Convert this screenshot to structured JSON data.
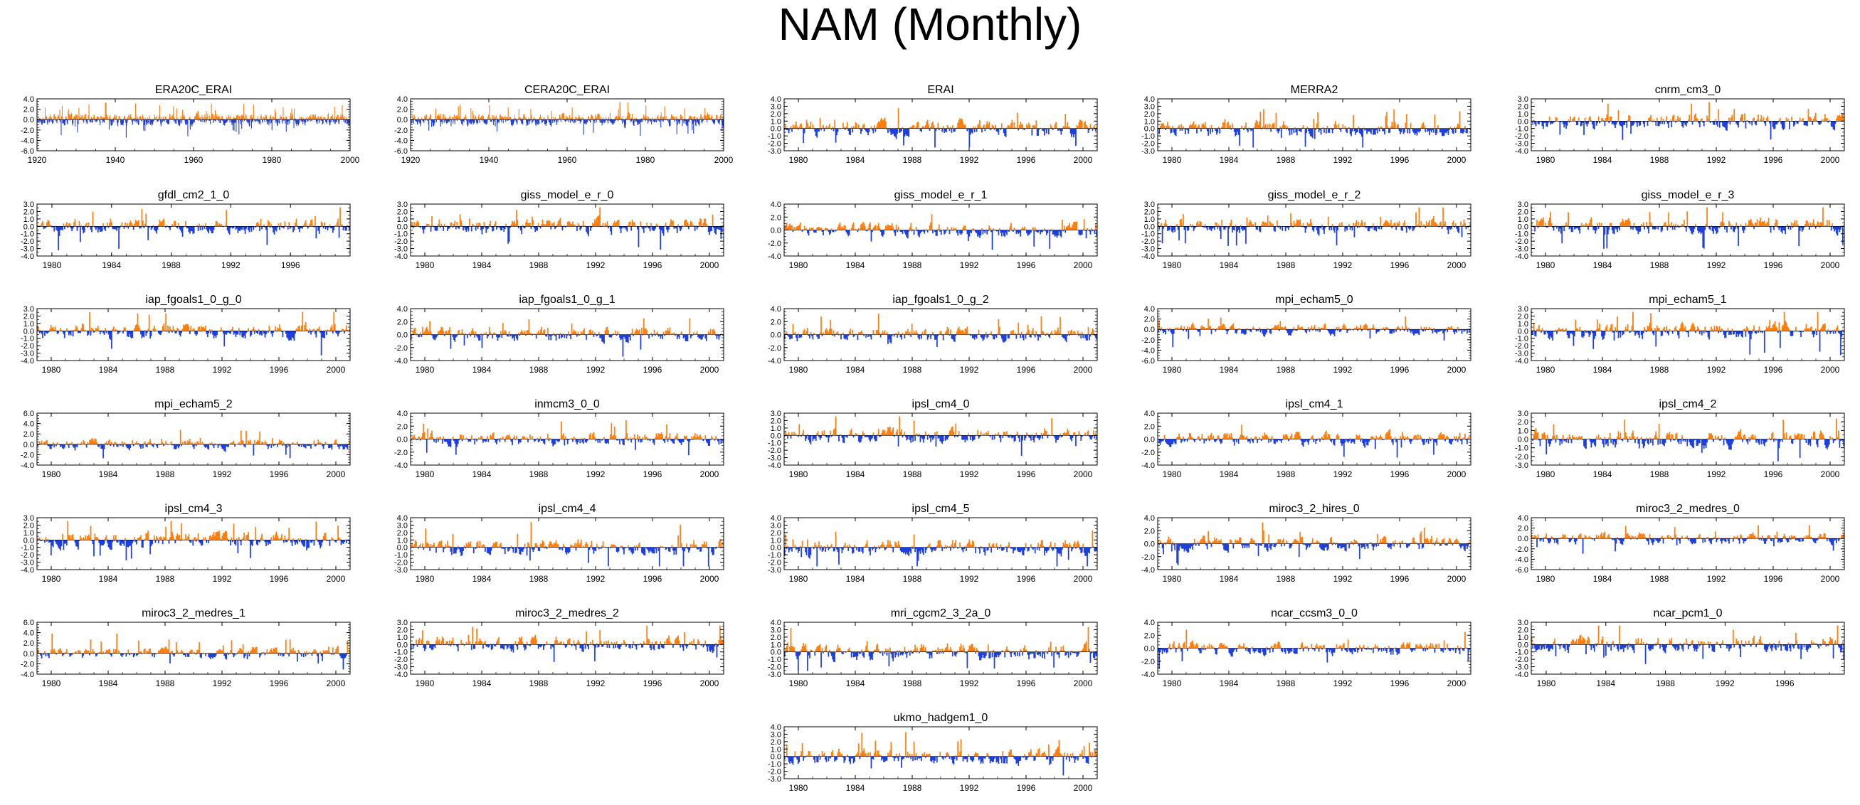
{
  "title": "NAM (Monthly)",
  "colors": {
    "positive": "#ff7f0e",
    "negative": "#1f3fe0",
    "axis": "#000000"
  },
  "chart_data": [
    {
      "type": "area",
      "title": "ERA20C_ERAI",
      "xlim": [
        1920,
        2000
      ],
      "ylim": [
        -6.0,
        4.0
      ],
      "xticks": [
        "1920",
        "1940",
        "1960",
        "1980",
        "2000"
      ],
      "yticks": [
        "4.0",
        "2.0",
        "0.0",
        "-2.0",
        "-4.0",
        "-6.0"
      ],
      "style": "spiky"
    },
    {
      "type": "area",
      "title": "CERA20C_ERAI",
      "xlim": [
        1920,
        2000
      ],
      "ylim": [
        -6.0,
        4.0
      ],
      "xticks": [
        "1920",
        "1940",
        "1960",
        "1980",
        "2000"
      ],
      "yticks": [
        "4.0",
        "2.0",
        "0.0",
        "-2.0",
        "-4.0",
        "-6.0"
      ],
      "style": "spiky"
    },
    {
      "type": "area",
      "title": "ERAI",
      "xlim": [
        1979,
        2001
      ],
      "ylim": [
        -3.0,
        4.0
      ],
      "xticks": [
        "1980",
        "1984",
        "1988",
        "1992",
        "1996",
        "2000"
      ],
      "yticks": [
        "4.0",
        "3.0",
        "2.0",
        "1.0",
        "0.0",
        "-1.0",
        "-2.0",
        "-3.0"
      ]
    },
    {
      "type": "area",
      "title": "MERRA2",
      "xlim": [
        1979,
        2001
      ],
      "ylim": [
        -3.0,
        4.0
      ],
      "xticks": [
        "1980",
        "1984",
        "1988",
        "1992",
        "1996",
        "2000"
      ],
      "yticks": [
        "4.0",
        "3.0",
        "2.0",
        "1.0",
        "0.0",
        "-1.0",
        "-2.0",
        "-3.0"
      ]
    },
    {
      "type": "area",
      "title": "cnrm_cm3_0",
      "xlim": [
        1979,
        2001
      ],
      "ylim": [
        -4.0,
        3.0
      ],
      "xticks": [
        "1980",
        "1984",
        "1988",
        "1992",
        "1996",
        "2000"
      ],
      "yticks": [
        "3.0",
        "2.0",
        "1.0",
        "0.0",
        "-1.0",
        "-2.0",
        "-3.0",
        "-4.0"
      ]
    },
    {
      "type": "area",
      "title": "gfdl_cm2_1_0",
      "xlim": [
        1979,
        2000
      ],
      "ylim": [
        -4.0,
        3.0
      ],
      "xticks": [
        "1980",
        "1984",
        "1988",
        "1992",
        "1996"
      ],
      "yticks": [
        "3.0",
        "2.0",
        "1.0",
        "0.0",
        "-1.0",
        "-2.0",
        "-3.0",
        "-4.0"
      ]
    },
    {
      "type": "area",
      "title": "giss_model_e_r_0",
      "xlim": [
        1979,
        2001
      ],
      "ylim": [
        -4.0,
        3.0
      ],
      "xticks": [
        "1980",
        "1984",
        "1988",
        "1992",
        "1996",
        "2000"
      ],
      "yticks": [
        "3.0",
        "2.0",
        "1.0",
        "0.0",
        "-1.0",
        "-2.0",
        "-3.0",
        "-4.0"
      ]
    },
    {
      "type": "area",
      "title": "giss_model_e_r_1",
      "xlim": [
        1979,
        2001
      ],
      "ylim": [
        -4.0,
        4.0
      ],
      "xticks": [
        "1980",
        "1984",
        "1988",
        "1992",
        "1996",
        "2000"
      ],
      "yticks": [
        "4.0",
        "2.0",
        "0.0",
        "-2.0",
        "-4.0"
      ]
    },
    {
      "type": "area",
      "title": "giss_model_e_r_2",
      "xlim": [
        1979,
        2001
      ],
      "ylim": [
        -4.0,
        3.0
      ],
      "xticks": [
        "1980",
        "1984",
        "1988",
        "1992",
        "1996",
        "2000"
      ],
      "yticks": [
        "3.0",
        "2.0",
        "1.0",
        "0.0",
        "-1.0",
        "-2.0",
        "-3.0",
        "-4.0"
      ]
    },
    {
      "type": "area",
      "title": "giss_model_e_r_3",
      "xlim": [
        1979,
        2001
      ],
      "ylim": [
        -4.0,
        3.0
      ],
      "xticks": [
        "1980",
        "1984",
        "1988",
        "1992",
        "1996",
        "2000"
      ],
      "yticks": [
        "3.0",
        "2.0",
        "1.0",
        "0.0",
        "-1.0",
        "-2.0",
        "-3.0",
        "-4.0"
      ]
    },
    {
      "type": "area",
      "title": "iap_fgoals1_0_g_0",
      "xlim": [
        1979,
        2001
      ],
      "ylim": [
        -4.0,
        3.0
      ],
      "xticks": [
        "1980",
        "1984",
        "1988",
        "1992",
        "1996",
        "2000"
      ],
      "yticks": [
        "3.0",
        "2.0",
        "1.0",
        "0.0",
        "-1.0",
        "-2.0",
        "-3.0",
        "-4.0"
      ]
    },
    {
      "type": "area",
      "title": "iap_fgoals1_0_g_1",
      "xlim": [
        1979,
        2001
      ],
      "ylim": [
        -4.0,
        4.0
      ],
      "xticks": [
        "1980",
        "1984",
        "1988",
        "1992",
        "1996",
        "2000"
      ],
      "yticks": [
        "4.0",
        "2.0",
        "0.0",
        "-2.0",
        "-4.0"
      ]
    },
    {
      "type": "area",
      "title": "iap_fgoals1_0_g_2",
      "xlim": [
        1979,
        2001
      ],
      "ylim": [
        -4.0,
        4.0
      ],
      "xticks": [
        "1980",
        "1984",
        "1988",
        "1992",
        "1996",
        "2000"
      ],
      "yticks": [
        "4.0",
        "2.0",
        "0.0",
        "-2.0",
        "-4.0"
      ]
    },
    {
      "type": "area",
      "title": "mpi_echam5_0",
      "xlim": [
        1979,
        2001
      ],
      "ylim": [
        -6.0,
        4.0
      ],
      "xticks": [
        "1980",
        "1984",
        "1988",
        "1992",
        "1996",
        "2000"
      ],
      "yticks": [
        "4.0",
        "2.0",
        "0.0",
        "-2.0",
        "-4.0",
        "-6.0"
      ]
    },
    {
      "type": "area",
      "title": "mpi_echam5_1",
      "xlim": [
        1979,
        2001
      ],
      "ylim": [
        -4.0,
        3.0
      ],
      "xticks": [
        "1980",
        "1984",
        "1988",
        "1992",
        "1996",
        "2000"
      ],
      "yticks": [
        "3.0",
        "2.0",
        "1.0",
        "0.0",
        "-1.0",
        "-2.0",
        "-3.0",
        "-4.0"
      ]
    },
    {
      "type": "area",
      "title": "mpi_echam5_2",
      "xlim": [
        1979,
        2001
      ],
      "ylim": [
        -4.0,
        6.0
      ],
      "xticks": [
        "1980",
        "1984",
        "1988",
        "1992",
        "1996",
        "2000"
      ],
      "yticks": [
        "6.0",
        "4.0",
        "2.0",
        "0.0",
        "-2.0",
        "-4.0"
      ]
    },
    {
      "type": "area",
      "title": "inmcm3_0_0",
      "xlim": [
        1979,
        2001
      ],
      "ylim": [
        -4.0,
        4.0
      ],
      "xticks": [
        "1980",
        "1984",
        "1988",
        "1992",
        "1996",
        "2000"
      ],
      "yticks": [
        "4.0",
        "2.0",
        "0.0",
        "-2.0",
        "-4.0"
      ]
    },
    {
      "type": "area",
      "title": "ipsl_cm4_0",
      "xlim": [
        1979,
        2001
      ],
      "ylim": [
        -4.0,
        3.0
      ],
      "xticks": [
        "1980",
        "1984",
        "1988",
        "1992",
        "1996",
        "2000"
      ],
      "yticks": [
        "3.0",
        "2.0",
        "1.0",
        "0.0",
        "-1.0",
        "-2.0",
        "-3.0",
        "-4.0"
      ]
    },
    {
      "type": "area",
      "title": "ipsl_cm4_1",
      "xlim": [
        1979,
        2001
      ],
      "ylim": [
        -4.0,
        4.0
      ],
      "xticks": [
        "1980",
        "1984",
        "1988",
        "1992",
        "1996",
        "2000"
      ],
      "yticks": [
        "4.0",
        "2.0",
        "0.0",
        "-2.0",
        "-4.0"
      ]
    },
    {
      "type": "area",
      "title": "ipsl_cm4_2",
      "xlim": [
        1979,
        2001
      ],
      "ylim": [
        -3.0,
        3.0
      ],
      "xticks": [
        "1980",
        "1984",
        "1988",
        "1992",
        "1996",
        "2000"
      ],
      "yticks": [
        "3.0",
        "2.0",
        "1.0",
        "0.0",
        "-1.0",
        "-2.0",
        "-3.0"
      ]
    },
    {
      "type": "area",
      "title": "ipsl_cm4_3",
      "xlim": [
        1979,
        2001
      ],
      "ylim": [
        -4.0,
        3.0
      ],
      "xticks": [
        "1980",
        "1984",
        "1988",
        "1992",
        "1996",
        "2000"
      ],
      "yticks": [
        "3.0",
        "2.0",
        "1.0",
        "0.0",
        "-1.0",
        "-2.0",
        "-3.0",
        "-4.0"
      ]
    },
    {
      "type": "area",
      "title": "ipsl_cm4_4",
      "xlim": [
        1979,
        2001
      ],
      "ylim": [
        -3.0,
        4.0
      ],
      "xticks": [
        "1980",
        "1984",
        "1988",
        "1992",
        "1996",
        "2000"
      ],
      "yticks": [
        "4.0",
        "3.0",
        "2.0",
        "1.0",
        "0.0",
        "-1.0",
        "-2.0",
        "-3.0"
      ]
    },
    {
      "type": "area",
      "title": "ipsl_cm4_5",
      "xlim": [
        1979,
        2001
      ],
      "ylim": [
        -3.0,
        4.0
      ],
      "xticks": [
        "1980",
        "1984",
        "1988",
        "1992",
        "1996",
        "2000"
      ],
      "yticks": [
        "4.0",
        "3.0",
        "2.0",
        "1.0",
        "0.0",
        "-1.0",
        "-2.0",
        "-3.0"
      ]
    },
    {
      "type": "area",
      "title": "miroc3_2_hires_0",
      "xlim": [
        1979,
        2001
      ],
      "ylim": [
        -4.0,
        4.0
      ],
      "xticks": [
        "1980",
        "1984",
        "1988",
        "1992",
        "1996",
        "2000"
      ],
      "yticks": [
        "4.0",
        "2.0",
        "0.0",
        "-2.0",
        "-4.0"
      ]
    },
    {
      "type": "area",
      "title": "miroc3_2_medres_0",
      "xlim": [
        1979,
        2001
      ],
      "ylim": [
        -6.0,
        4.0
      ],
      "xticks": [
        "1980",
        "1984",
        "1988",
        "1992",
        "1996",
        "2000"
      ],
      "yticks": [
        "4.0",
        "2.0",
        "0.0",
        "-2.0",
        "-4.0",
        "-6.0"
      ]
    },
    {
      "type": "area",
      "title": "miroc3_2_medres_1",
      "xlim": [
        1979,
        2001
      ],
      "ylim": [
        -4.0,
        6.0
      ],
      "xticks": [
        "1980",
        "1984",
        "1988",
        "1992",
        "1996",
        "2000"
      ],
      "yticks": [
        "6.0",
        "4.0",
        "2.0",
        "0.0",
        "-2.0",
        "-4.0"
      ]
    },
    {
      "type": "area",
      "title": "miroc3_2_medres_2",
      "xlim": [
        1979,
        2001
      ],
      "ylim": [
        -4.0,
        3.0
      ],
      "xticks": [
        "1980",
        "1984",
        "1988",
        "1992",
        "1996",
        "2000"
      ],
      "yticks": [
        "3.0",
        "2.0",
        "1.0",
        "0.0",
        "-1.0",
        "-2.0",
        "-3.0",
        "-4.0"
      ]
    },
    {
      "type": "area",
      "title": "mri_cgcm2_3_2a_0",
      "xlim": [
        1979,
        2001
      ],
      "ylim": [
        -3.0,
        4.0
      ],
      "xticks": [
        "1980",
        "1984",
        "1988",
        "1992",
        "1996",
        "2000"
      ],
      "yticks": [
        "4.0",
        "3.0",
        "2.0",
        "1.0",
        "0.0",
        "-1.0",
        "-2.0",
        "-3.0"
      ]
    },
    {
      "type": "area",
      "title": "ncar_ccsm3_0_0",
      "xlim": [
        1979,
        2001
      ],
      "ylim": [
        -4.0,
        4.0
      ],
      "xticks": [
        "1980",
        "1984",
        "1988",
        "1992",
        "1996",
        "2000"
      ],
      "yticks": [
        "4.0",
        "2.0",
        "0.0",
        "-2.0",
        "-4.0"
      ]
    },
    {
      "type": "area",
      "title": "ncar_pcm1_0",
      "xlim": [
        1979,
        2000
      ],
      "ylim": [
        -4.0,
        3.0
      ],
      "xticks": [
        "1980",
        "1984",
        "1988",
        "1992",
        "1996"
      ],
      "yticks": [
        "3.0",
        "2.0",
        "1.0",
        "0.0",
        "-1.0",
        "-2.0",
        "-3.0",
        "-4.0"
      ]
    },
    {
      "type": "area",
      "title": "ukmo_hadgem1_0",
      "xlim": [
        1979,
        2001
      ],
      "ylim": [
        -3.0,
        4.0
      ],
      "xticks": [
        "1980",
        "1984",
        "1988",
        "1992",
        "1996",
        "2000"
      ],
      "yticks": [
        "4.0",
        "3.0",
        "2.0",
        "1.0",
        "0.0",
        "-1.0",
        "-2.0",
        "-3.0"
      ]
    }
  ]
}
